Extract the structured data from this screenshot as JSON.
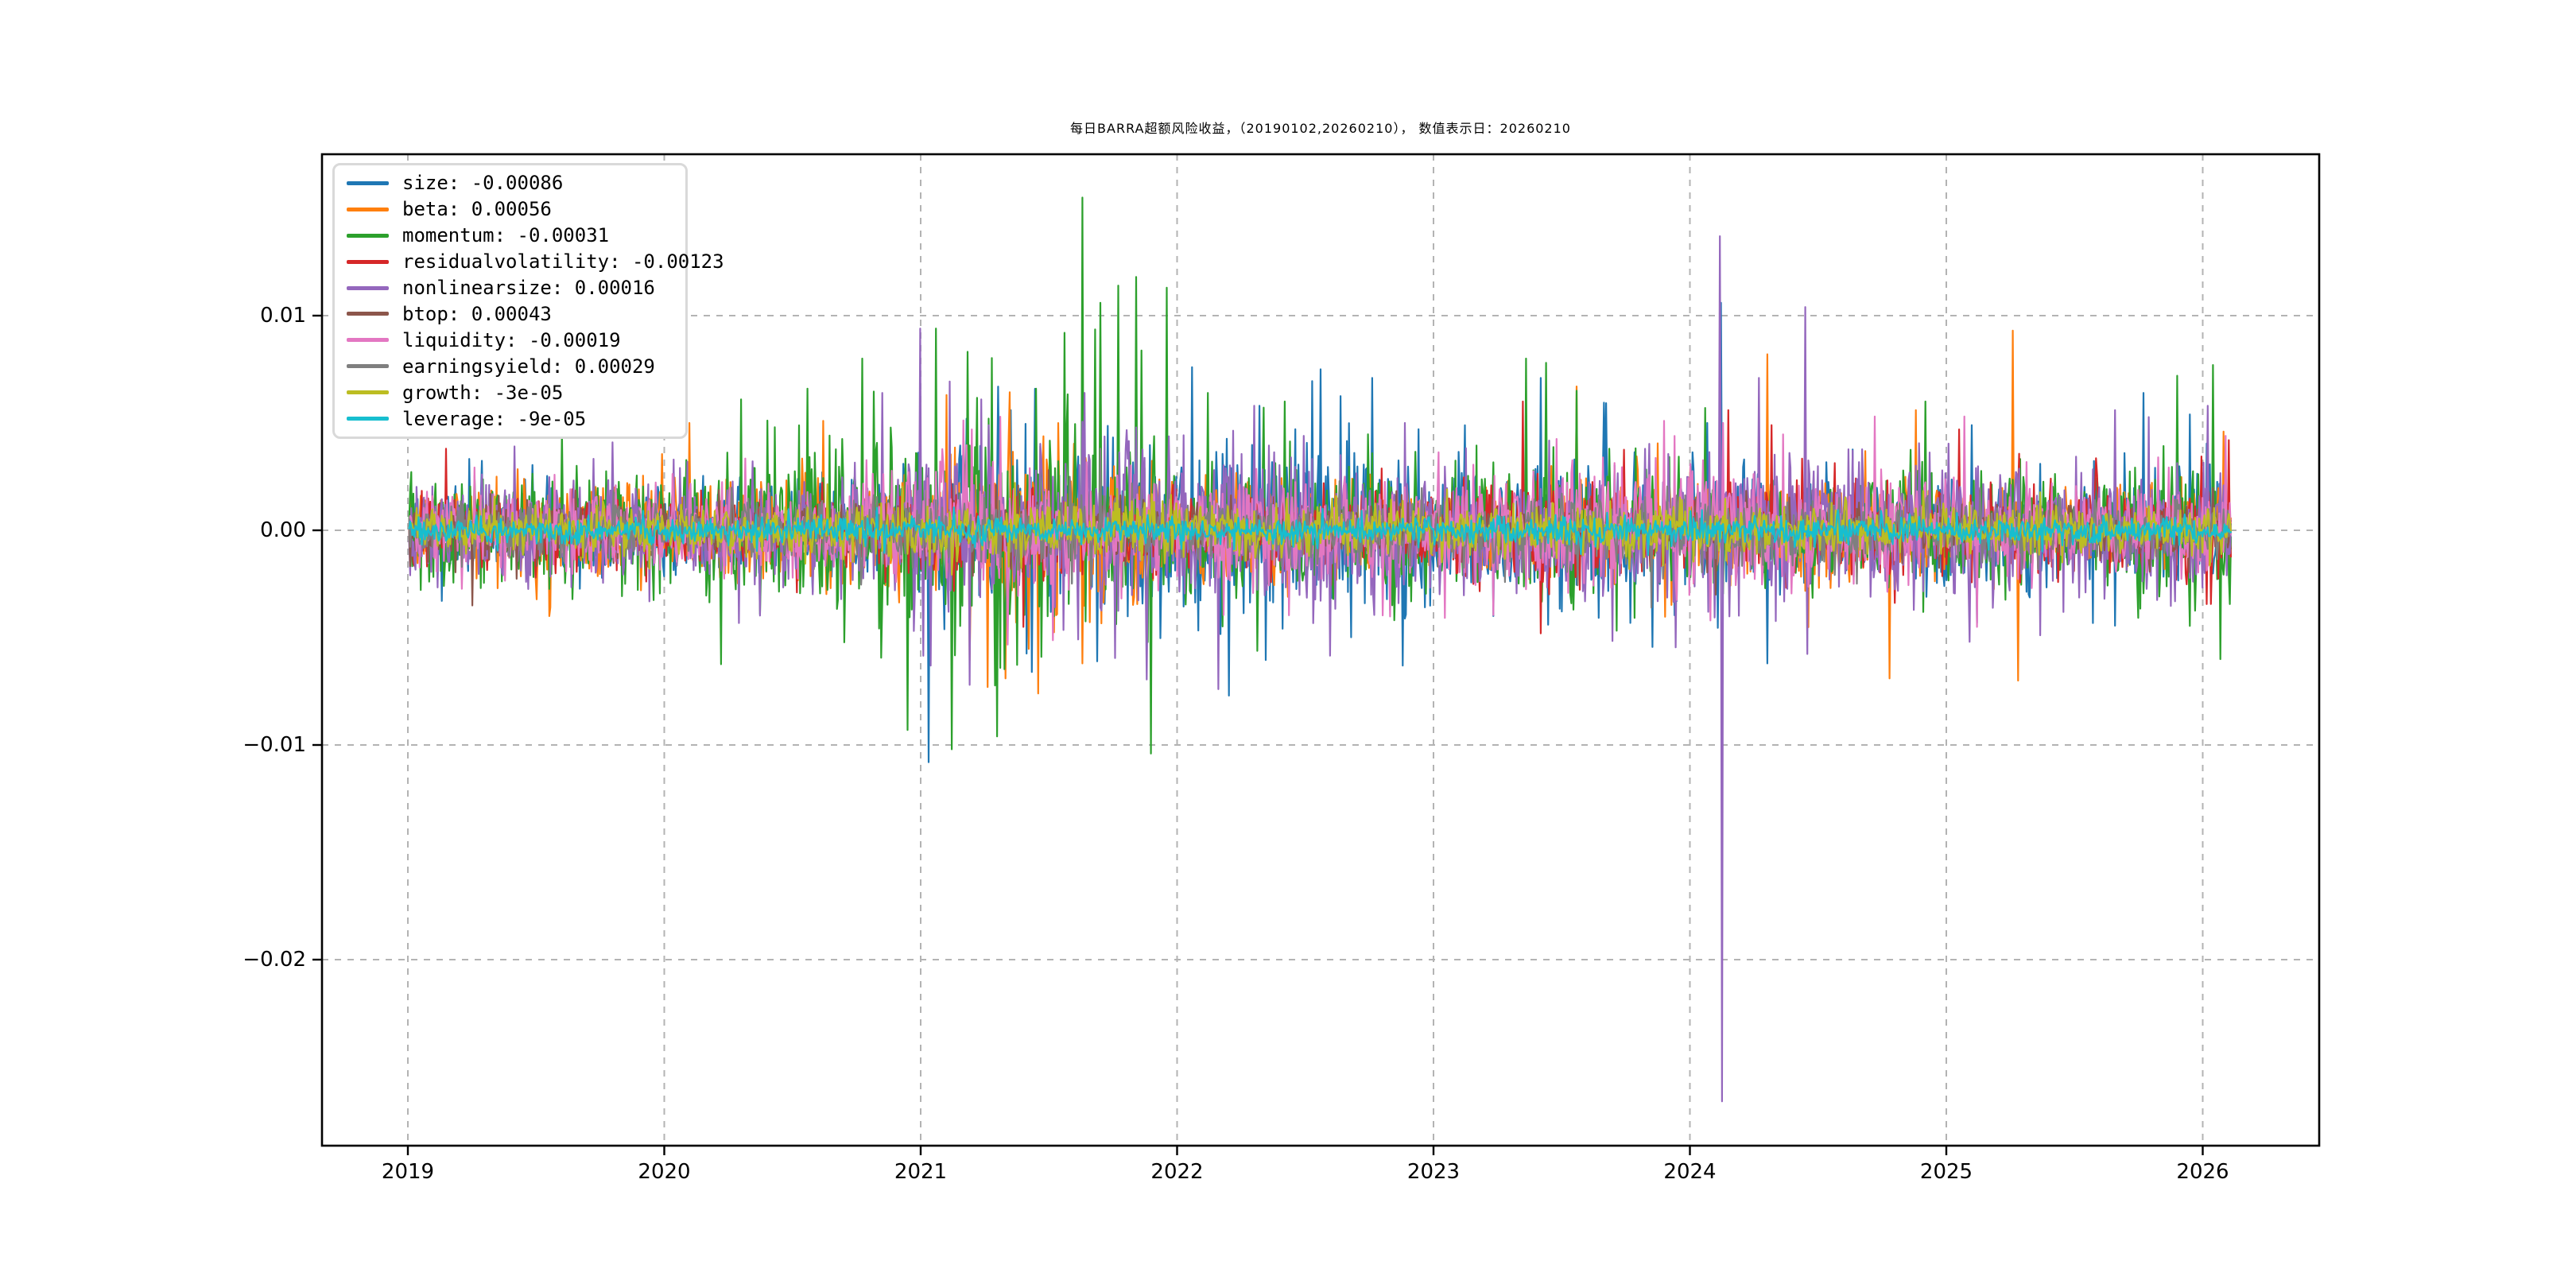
{
  "title": "每日BARRA超额风险收益，（20190102,20260210）， 数值表示日：20260210",
  "chart_data": {
    "type": "line",
    "title": "每日BARRA超额风险收益，（20190102,20260210）， 数值表示日：20260210",
    "x_start_year": 2019.005,
    "x_end_year": 2026.11,
    "n_points": 1730,
    "ylim": [
      -0.0287,
      0.0175
    ],
    "xlim_years": [
      2018.66,
      2026.45
    ],
    "grid": "dashed-gray-both-axes",
    "legend_position": "upper left",
    "background": "#ffffff",
    "grid_color": "#b3b3b3",
    "axis_color": "#000000",
    "seed": 20260210,
    "xticks": [
      {
        "year": 2019,
        "label": "2019"
      },
      {
        "year": 2020,
        "label": "2020"
      },
      {
        "year": 2021,
        "label": "2021"
      },
      {
        "year": 2022,
        "label": "2022"
      },
      {
        "year": 2023,
        "label": "2023"
      },
      {
        "year": 2024,
        "label": "2024"
      },
      {
        "year": 2025,
        "label": "2025"
      },
      {
        "year": 2026,
        "label": "2026"
      }
    ],
    "yticks": [
      {
        "value": 0.01,
        "label": "0.01"
      },
      {
        "value": 0.0,
        "label": "0.00"
      },
      {
        "value": -0.01,
        "label": "−0.01"
      },
      {
        "value": -0.02,
        "label": "−0.02"
      }
    ],
    "series": [
      {
        "name": "size",
        "color": "#1f77b4",
        "legend_label": "size: -0.00086",
        "last_value": -0.00086,
        "sigma_envelope": [
          [
            2019,
            0.9
          ],
          [
            2020,
            1.0
          ],
          [
            2020.8,
            1.1
          ],
          [
            2021.1,
            1.9
          ],
          [
            2021.6,
            1.8
          ],
          [
            2022,
            2.1
          ],
          [
            2022.8,
            2.1
          ],
          [
            2023.2,
            1.5
          ],
          [
            2023.6,
            1.7
          ],
          [
            2024,
            1.4
          ],
          [
            2024.6,
            1.3
          ],
          [
            2025,
            1.2
          ],
          [
            2025.6,
            1.2
          ],
          [
            2026.11,
            1.5
          ]
        ],
        "spikes": [
          [
            2021.03,
            -0.0108
          ],
          [
            2021.18,
            0.0052
          ],
          [
            2021.35,
            0.0056
          ],
          [
            2022.06,
            0.0076
          ],
          [
            2022.2,
            -0.0077
          ],
          [
            2022.32,
            0.0058
          ],
          [
            2022.56,
            0.0075
          ],
          [
            2022.76,
            0.0071
          ],
          [
            2022.88,
            -0.0063
          ],
          [
            2023.42,
            0.0071
          ],
          [
            2024.12,
            0.0106
          ],
          [
            2024.3,
            -0.0062
          ],
          [
            2025.1,
            0.0049
          ],
          [
            2025.77,
            0.0064
          ],
          [
            2025.95,
            0.0054
          ]
        ]
      },
      {
        "name": "beta",
        "color": "#ff7f0e",
        "legend_label": "beta: 0.00056",
        "last_value": 0.00056,
        "sigma_envelope": [
          [
            2019,
            0.9
          ],
          [
            2019.5,
            1.1
          ],
          [
            2020,
            1.2
          ],
          [
            2020.6,
            1.1
          ],
          [
            2021,
            1.3
          ],
          [
            2021.35,
            2.0
          ],
          [
            2021.7,
            1.7
          ],
          [
            2022,
            1.1
          ],
          [
            2022.6,
            1.0
          ],
          [
            2023,
            0.95
          ],
          [
            2023.5,
            1.2
          ],
          [
            2024,
            1.1
          ],
          [
            2024.6,
            1.3
          ],
          [
            2025,
            0.95
          ],
          [
            2025.7,
            0.9
          ],
          [
            2026.11,
            1.2
          ]
        ],
        "spikes": [
          [
            2020.1,
            0.005
          ],
          [
            2020.62,
            0.0051
          ],
          [
            2021.1,
            0.0063
          ],
          [
            2021.26,
            -0.0073
          ],
          [
            2021.33,
            -0.0069
          ],
          [
            2021.46,
            -0.0076
          ],
          [
            2021.63,
            -0.0062
          ],
          [
            2023.56,
            0.0067
          ],
          [
            2024.3,
            0.0082
          ],
          [
            2024.78,
            -0.0069
          ],
          [
            2024.88,
            0.0056
          ],
          [
            2025.26,
            0.0093
          ],
          [
            2025.28,
            -0.007
          ],
          [
            2026.08,
            0.0046
          ]
        ]
      },
      {
        "name": "momentum",
        "color": "#2ca02c",
        "legend_label": "momentum: -0.00031",
        "last_value": -0.00031,
        "sigma_envelope": [
          [
            2019,
            1.3
          ],
          [
            2019.6,
            1.2
          ],
          [
            2020,
            1.6
          ],
          [
            2020.5,
            1.9
          ],
          [
            2020.9,
            2.2
          ],
          [
            2021.1,
            2.5
          ],
          [
            2021.5,
            2.6
          ],
          [
            2021.8,
            2.6
          ],
          [
            2022,
            1.7
          ],
          [
            2022.6,
            1.5
          ],
          [
            2023,
            1.3
          ],
          [
            2023.45,
            1.8
          ],
          [
            2023.8,
            1.3
          ],
          [
            2024.2,
            1.1
          ],
          [
            2024.9,
            1.5
          ],
          [
            2025.4,
            1.1
          ],
          [
            2026.11,
            1.9
          ]
        ],
        "spikes": [
          [
            2019.6,
            0.0046
          ],
          [
            2020.3,
            0.0061
          ],
          [
            2020.56,
            0.0066
          ],
          [
            2020.77,
            0.008
          ],
          [
            2020.95,
            -0.0093
          ],
          [
            2021.06,
            0.0094
          ],
          [
            2021.12,
            -0.0102
          ],
          [
            2021.3,
            -0.0096
          ],
          [
            2021.45,
            0.0066
          ],
          [
            2021.56,
            0.0092
          ],
          [
            2021.63,
            0.0155
          ],
          [
            2021.7,
            0.0106
          ],
          [
            2021.77,
            0.0114
          ],
          [
            2021.84,
            0.0118
          ],
          [
            2021.9,
            -0.0104
          ],
          [
            2021.96,
            0.0113
          ],
          [
            2022.12,
            0.0064
          ],
          [
            2022.42,
            0.006
          ],
          [
            2023.36,
            0.008
          ],
          [
            2023.44,
            0.0078
          ],
          [
            2023.56,
            0.0065
          ],
          [
            2024.06,
            0.0057
          ],
          [
            2024.92,
            0.006
          ],
          [
            2025.9,
            0.0072
          ],
          [
            2026.04,
            0.0077
          ],
          [
            2026.07,
            -0.006
          ]
        ]
      },
      {
        "name": "residualvolatility",
        "color": "#d62728",
        "legend_label": "residualvolatility: -0.00123",
        "last_value": -0.00123,
        "sigma_envelope": [
          [
            2019,
            0.75
          ],
          [
            2020,
            0.7
          ],
          [
            2021,
            0.9
          ],
          [
            2021.5,
            1.0
          ],
          [
            2022,
            0.8
          ],
          [
            2023,
            0.8
          ],
          [
            2023.4,
            1.1
          ],
          [
            2024,
            1.0
          ],
          [
            2024.6,
            0.9
          ],
          [
            2025.1,
            1.0
          ],
          [
            2026.11,
            0.95
          ]
        ],
        "spikes": [
          [
            2019.15,
            0.0038
          ],
          [
            2021.4,
            -0.0045
          ],
          [
            2023.35,
            0.006
          ],
          [
            2023.42,
            -0.0048
          ],
          [
            2024.15,
            0.0056
          ],
          [
            2024.32,
            0.0049
          ],
          [
            2025.05,
            0.0047
          ],
          [
            2026.1,
            0.0042
          ]
        ]
      },
      {
        "name": "nonlinearsize",
        "color": "#9467bd",
        "legend_label": "nonlinearsize: 0.00016",
        "last_value": 0.00016,
        "sigma_envelope": [
          [
            2019,
            1.1
          ],
          [
            2019.8,
            1.2
          ],
          [
            2020.4,
            1.2
          ],
          [
            2020.9,
            1.6
          ],
          [
            2021.1,
            2.0
          ],
          [
            2021.6,
            2.0
          ],
          [
            2022,
            1.9
          ],
          [
            2022.5,
            1.7
          ],
          [
            2023,
            1.3
          ],
          [
            2023.6,
            1.4
          ],
          [
            2024.2,
            1.6
          ],
          [
            2024.7,
            1.6
          ],
          [
            2025.2,
            1.4
          ],
          [
            2026.11,
            1.5
          ]
        ],
        "spikes": [
          [
            2019.8,
            0.0041
          ],
          [
            2020.85,
            0.0064
          ],
          [
            2021.0,
            0.0094
          ],
          [
            2021.04,
            -0.0063
          ],
          [
            2021.64,
            0.0064
          ],
          [
            2022.16,
            -0.0074
          ],
          [
            2022.3,
            0.0058
          ],
          [
            2024.115,
            0.0137
          ],
          [
            2024.127,
            -0.0266
          ],
          [
            2024.27,
            0.0071
          ],
          [
            2024.45,
            0.0104
          ],
          [
            2025.66,
            0.0056
          ],
          [
            2026.02,
            0.0058
          ]
        ]
      },
      {
        "name": "btop",
        "color": "#8c564b",
        "legend_label": "btop: 0.00043",
        "last_value": 0.00043,
        "sigma_envelope": [
          [
            2019,
            0.55
          ],
          [
            2019.3,
            0.7
          ],
          [
            2020,
            0.5
          ],
          [
            2021,
            0.6
          ],
          [
            2022,
            0.55
          ],
          [
            2023,
            0.5
          ],
          [
            2024,
            0.55
          ],
          [
            2025,
            0.5
          ],
          [
            2026.11,
            0.55
          ]
        ],
        "spikes": [
          [
            2019.25,
            -0.0035
          ],
          [
            2021.5,
            0.0028
          ],
          [
            2024.1,
            -0.003
          ]
        ]
      },
      {
        "name": "liquidity",
        "color": "#e377c2",
        "legend_label": "liquidity: -0.00019",
        "last_value": -0.00019,
        "sigma_envelope": [
          [
            2019,
            0.8
          ],
          [
            2020,
            0.85
          ],
          [
            2020.6,
            1.0
          ],
          [
            2021.1,
            1.4
          ],
          [
            2021.4,
            1.5
          ],
          [
            2022,
            1.1
          ],
          [
            2022.8,
            1.1
          ],
          [
            2023.2,
            1.3
          ],
          [
            2023.7,
            1.4
          ],
          [
            2024.05,
            1.6
          ],
          [
            2024.4,
            1.2
          ],
          [
            2025,
            1.0
          ],
          [
            2025.6,
            0.9
          ],
          [
            2026.11,
            1.0
          ]
        ],
        "spikes": [
          [
            2021.2,
            0.0047
          ],
          [
            2023.9,
            0.0051
          ],
          [
            2024.08,
            -0.0042
          ],
          [
            2024.13,
            0.005
          ],
          [
            2024.72,
            0.0053
          ],
          [
            2025.07,
            0.0053
          ],
          [
            2025.12,
            -0.0045
          ],
          [
            2026.09,
            0.0044
          ]
        ]
      },
      {
        "name": "earningsyield",
        "color": "#7f7f7f",
        "legend_label": "earningsyield: 0.00029",
        "last_value": 0.00029,
        "sigma_envelope": [
          [
            2019,
            0.55
          ],
          [
            2020,
            0.55
          ],
          [
            2021,
            0.75
          ],
          [
            2022,
            0.7
          ],
          [
            2023,
            0.6
          ],
          [
            2023.8,
            0.8
          ],
          [
            2024.5,
            0.7
          ],
          [
            2026.11,
            0.6
          ]
        ],
        "spikes": [
          [
            2021.7,
            0.0038
          ],
          [
            2023.85,
            -0.0036
          ]
        ]
      },
      {
        "name": "growth",
        "color": "#bcbd22",
        "legend_label": "growth: -3e-05",
        "last_value": -3e-05,
        "sigma_envelope": [
          [
            2019,
            0.45
          ],
          [
            2020,
            0.5
          ],
          [
            2021,
            0.65
          ],
          [
            2022,
            0.6
          ],
          [
            2023,
            0.55
          ],
          [
            2024,
            0.6
          ],
          [
            2025,
            0.5
          ],
          [
            2026.11,
            0.55
          ]
        ],
        "spikes": []
      },
      {
        "name": "leverage",
        "color": "#17becf",
        "legend_label": "leverage: -9e-05",
        "last_value": -9e-05,
        "sigma_envelope": [
          [
            2019,
            0.28
          ],
          [
            2020,
            0.25
          ],
          [
            2021,
            0.3
          ],
          [
            2022,
            0.28
          ],
          [
            2023,
            0.28
          ],
          [
            2024,
            0.33
          ],
          [
            2025,
            0.28
          ],
          [
            2026.11,
            0.3
          ]
        ],
        "spikes": []
      }
    ]
  }
}
